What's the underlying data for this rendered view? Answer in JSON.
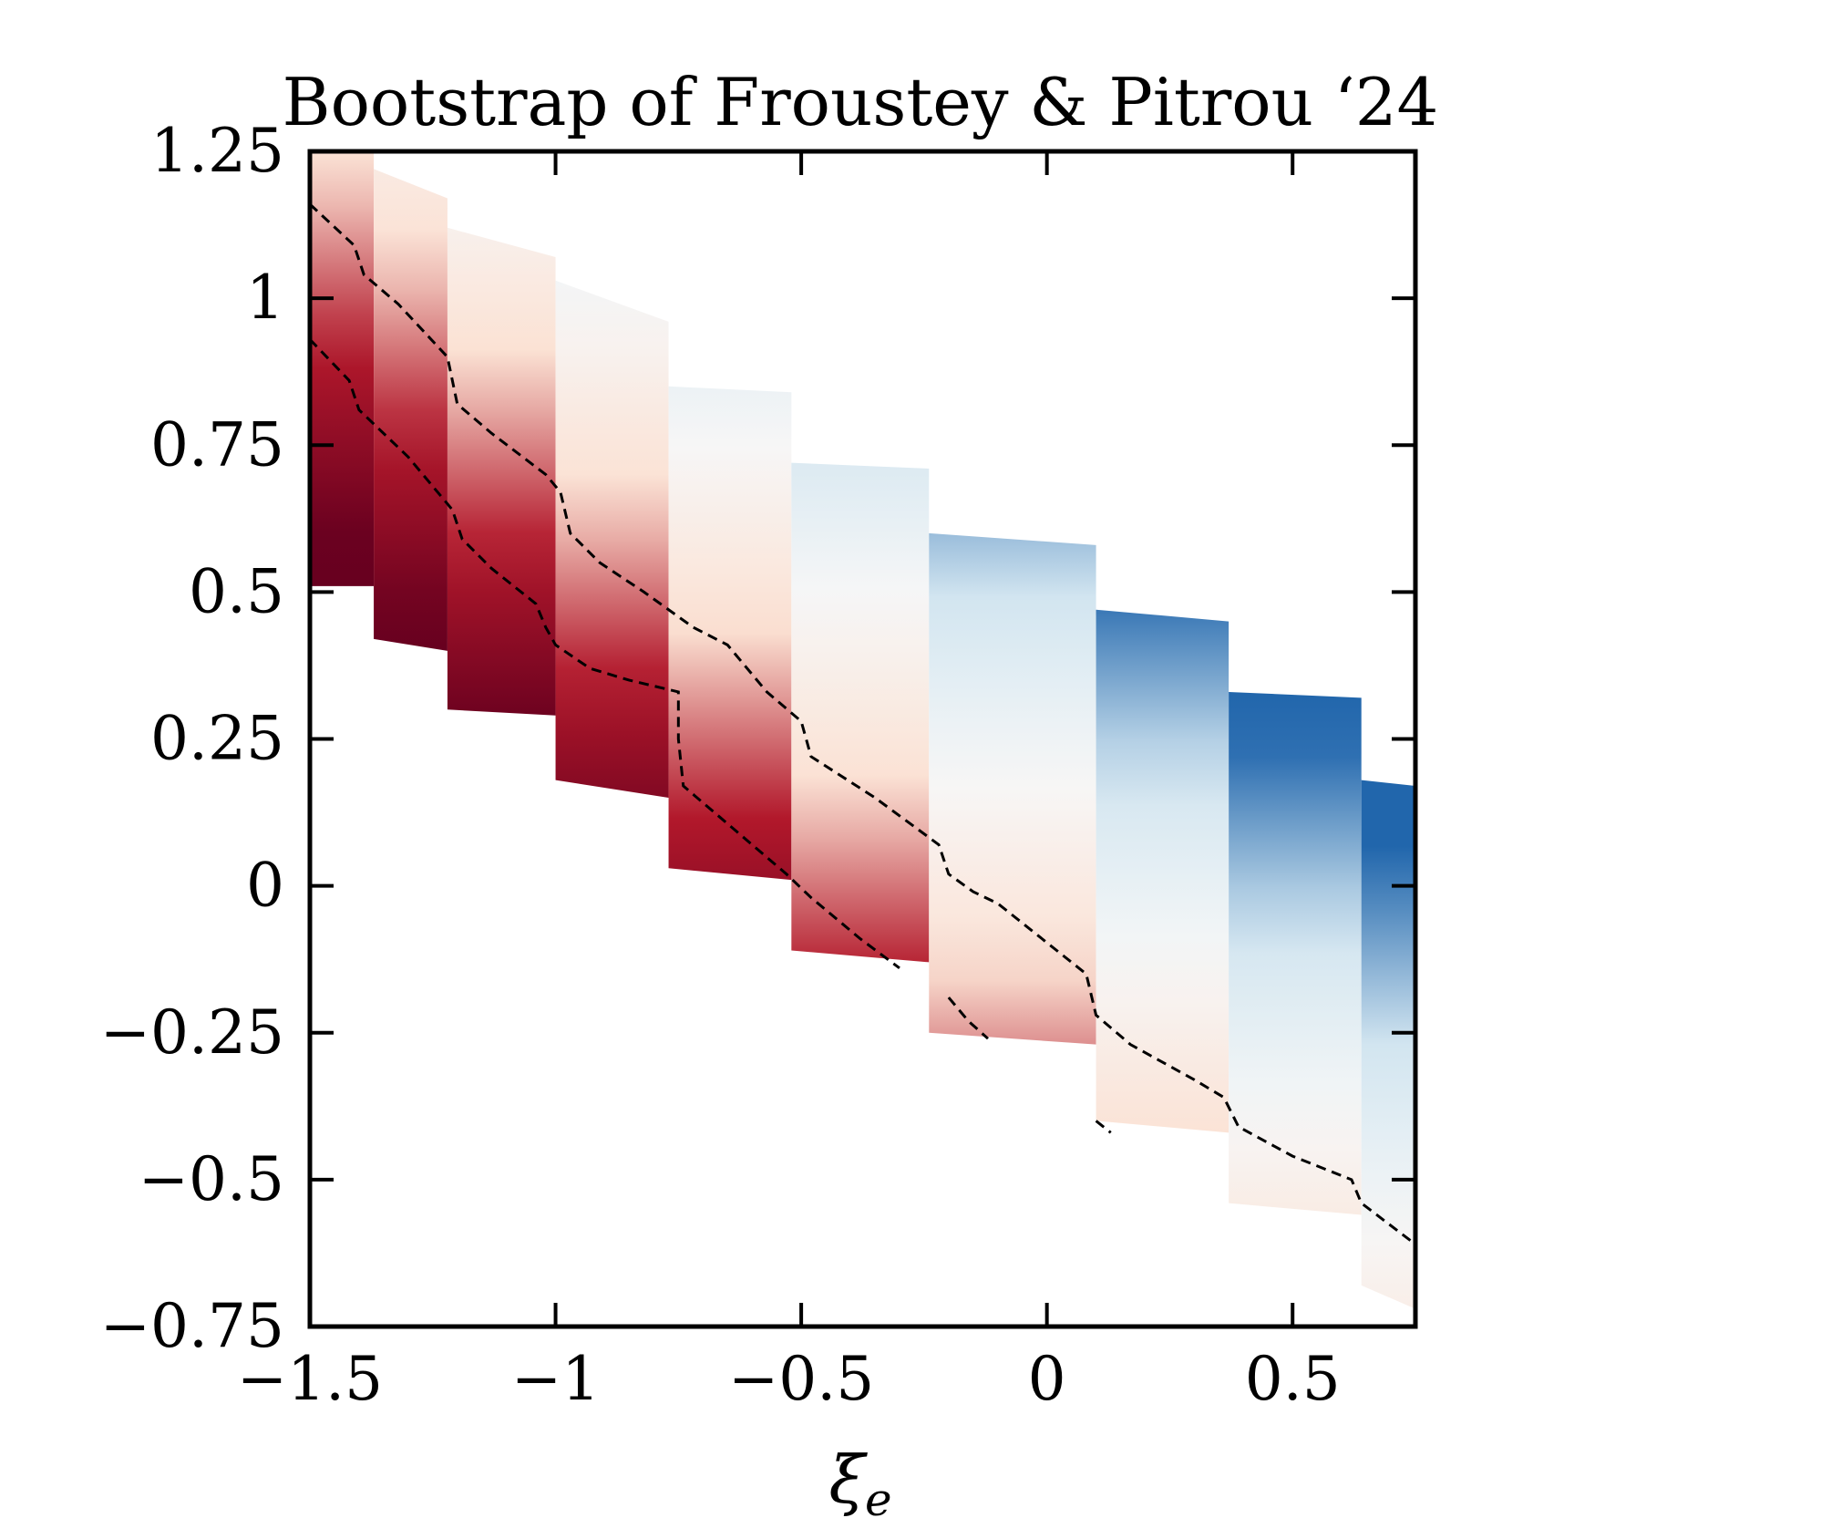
{
  "chart_data": {
    "type": "heatmap",
    "title": "Bootstrap of Froustey & Pitrou ‘24",
    "xlabel": "ξ",
    "xlabel_subscript": "e",
    "ylabel": "",
    "xlim": [
      -1.5,
      0.75
    ],
    "ylim": [
      -0.75,
      1.25
    ],
    "x_ticks": [
      -1.5,
      -1,
      -0.5,
      0,
      0.5
    ],
    "x_tick_labels": [
      "−1.5",
      "−1",
      "−0.5",
      "0",
      "0.5"
    ],
    "y_ticks": [
      -0.75,
      -0.5,
      -0.25,
      0,
      0.25,
      0.5,
      0.75,
      1,
      1.25
    ],
    "y_tick_labels": [
      "−0.75",
      "−0.5",
      "−0.25",
      "0",
      "0.25",
      "0.5",
      "0.75",
      "1",
      "1.25"
    ],
    "colormap": "RdBu",
    "colors": {
      "red_dark": "#67001f",
      "red": "#b2182b",
      "red_light": "#fbe1d3",
      "white": "#f7f7f7",
      "blue_light": "#d1e5f0",
      "blue": "#2166ac"
    },
    "bands": [
      {
        "x0": -1.5,
        "x1": -1.37,
        "top0": 1.25,
        "top1": 1.25,
        "bot0": 0.51,
        "bot1": 0.51
      },
      {
        "x0": -1.37,
        "x1": -1.22,
        "top0": 1.22,
        "top1": 1.17,
        "bot0": 0.42,
        "bot1": 0.4
      },
      {
        "x0": -1.22,
        "x1": -1.0,
        "top0": 1.12,
        "top1": 1.07,
        "bot0": 0.3,
        "bot1": 0.29
      },
      {
        "x0": -1.0,
        "x1": -0.77,
        "top0": 1.03,
        "top1": 0.96,
        "bot0": 0.18,
        "bot1": 0.15
      },
      {
        "x0": -0.77,
        "x1": -0.52,
        "top0": 0.85,
        "top1": 0.84,
        "bot0": 0.03,
        "bot1": 0.01
      },
      {
        "x0": -0.52,
        "x1": -0.24,
        "top0": 0.72,
        "top1": 0.71,
        "bot0": -0.11,
        "bot1": -0.13
      },
      {
        "x0": -0.24,
        "x1": 0.1,
        "top0": 0.6,
        "top1": 0.58,
        "bot0": -0.25,
        "bot1": -0.27
      },
      {
        "x0": 0.1,
        "x1": 0.37,
        "top0": 0.47,
        "top1": 0.45,
        "bot0": -0.4,
        "bot1": -0.42
      },
      {
        "x0": 0.37,
        "x1": 0.64,
        "top0": 0.33,
        "top1": 0.32,
        "bot0": -0.54,
        "bot1": -0.56
      },
      {
        "x0": 0.64,
        "x1": 0.75,
        "top0": 0.18,
        "top1": 0.17,
        "bot0": -0.68,
        "bot1": -0.72
      }
    ],
    "contours": [
      {
        "name": "upper-dashed-contour",
        "points": [
          [
            -1.5,
            1.16
          ],
          [
            -1.41,
            1.09
          ],
          [
            -1.39,
            1.04
          ],
          [
            -1.32,
            0.99
          ],
          [
            -1.22,
            0.9
          ],
          [
            -1.2,
            0.82
          ],
          [
            -1.13,
            0.77
          ],
          [
            -1.02,
            0.7
          ],
          [
            -0.99,
            0.67
          ],
          [
            -0.97,
            0.6
          ],
          [
            -0.91,
            0.55
          ],
          [
            -0.82,
            0.5
          ],
          [
            -0.72,
            0.44
          ],
          [
            -0.65,
            0.41
          ],
          [
            -0.57,
            0.33
          ],
          [
            -0.5,
            0.28
          ],
          [
            -0.48,
            0.22
          ],
          [
            -0.35,
            0.15
          ],
          [
            -0.22,
            0.07
          ],
          [
            -0.2,
            0.02
          ],
          [
            -0.15,
            -0.01
          ],
          [
            -0.1,
            -0.03
          ],
          [
            -0.01,
            -0.09
          ],
          [
            0.08,
            -0.15
          ],
          [
            0.1,
            -0.22
          ],
          [
            0.17,
            -0.27
          ],
          [
            0.3,
            -0.33
          ],
          [
            0.36,
            -0.36
          ],
          [
            0.39,
            -0.41
          ],
          [
            0.5,
            -0.46
          ],
          [
            0.62,
            -0.5
          ],
          [
            0.64,
            -0.54
          ],
          [
            0.75,
            -0.61
          ]
        ]
      },
      {
        "name": "lower-dashed-contour",
        "points": [
          [
            -1.5,
            0.93
          ],
          [
            -1.42,
            0.86
          ],
          [
            -1.4,
            0.81
          ],
          [
            -1.3,
            0.73
          ],
          [
            -1.21,
            0.64
          ],
          [
            -1.19,
            0.59
          ],
          [
            -1.13,
            0.54
          ],
          [
            -1.04,
            0.48
          ],
          [
            -1.02,
            0.44
          ],
          [
            -1.0,
            0.41
          ],
          [
            -0.93,
            0.37
          ],
          [
            -0.85,
            0.35
          ],
          [
            -0.75,
            0.33
          ],
          [
            -0.75,
            0.25
          ],
          [
            -0.74,
            0.17
          ],
          [
            -0.6,
            0.07
          ],
          [
            -0.53,
            0.02
          ],
          [
            -0.48,
            -0.02
          ],
          [
            -0.38,
            -0.09
          ],
          [
            -0.3,
            -0.14
          ]
        ]
      },
      {
        "name": "lower-dashed-contour-segment-2",
        "points": [
          [
            -0.2,
            -0.19
          ],
          [
            -0.16,
            -0.23
          ],
          [
            -0.12,
            -0.26
          ]
        ]
      },
      {
        "name": "lower-dashed-contour-segment-3",
        "points": [
          [
            0.1,
            -0.4
          ],
          [
            0.13,
            -0.42
          ]
        ]
      }
    ]
  }
}
